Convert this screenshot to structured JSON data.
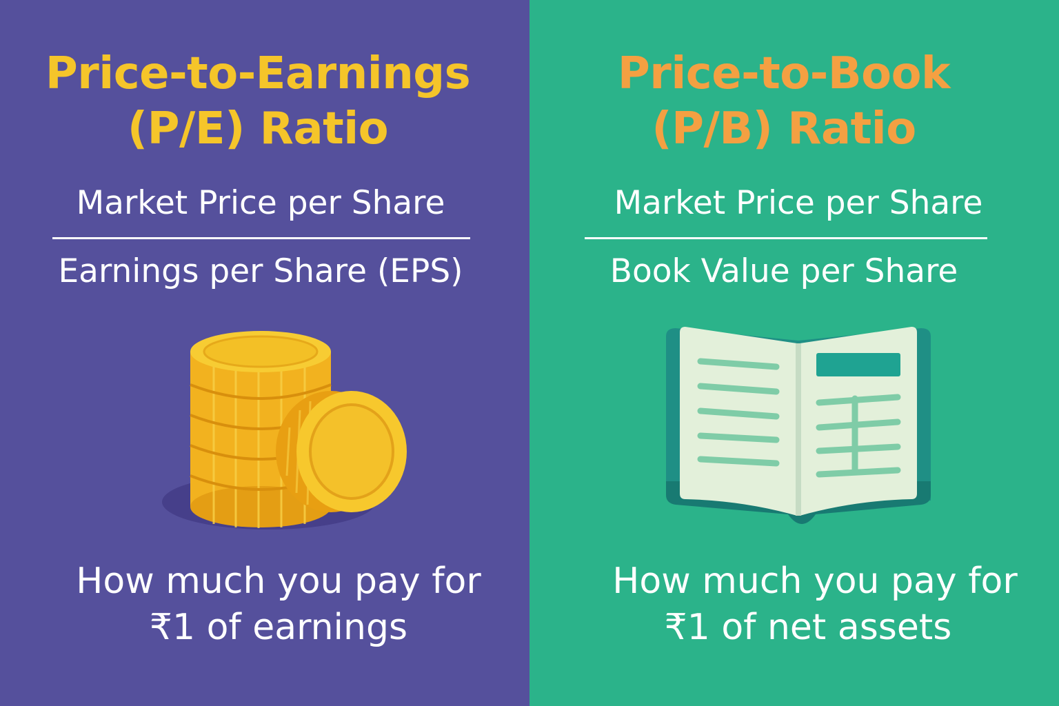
{
  "panels": {
    "pe": {
      "title_line1": "Price-to-Earnings",
      "title_line2": "(P/E) Ratio",
      "numerator": "Market Price per Share",
      "denominator": "Earnings per Share (EPS)",
      "caption_line1": "How much you pay for",
      "caption_line2": "₹1 of earnings",
      "icon": "coins-stack-icon",
      "background": "#55509c",
      "title_color": "#f5c52a"
    },
    "pb": {
      "title_line1": "Price-to-Book",
      "title_line2": "(P/B) Ratio",
      "numerator": "Market Price per Share",
      "denominator": "Book Value per Share",
      "caption_line1": "How much you pay for",
      "caption_line2": "₹1 of net assets",
      "icon": "open-book-icon",
      "background": "#2bb38a",
      "title_color": "#f4a042"
    }
  }
}
